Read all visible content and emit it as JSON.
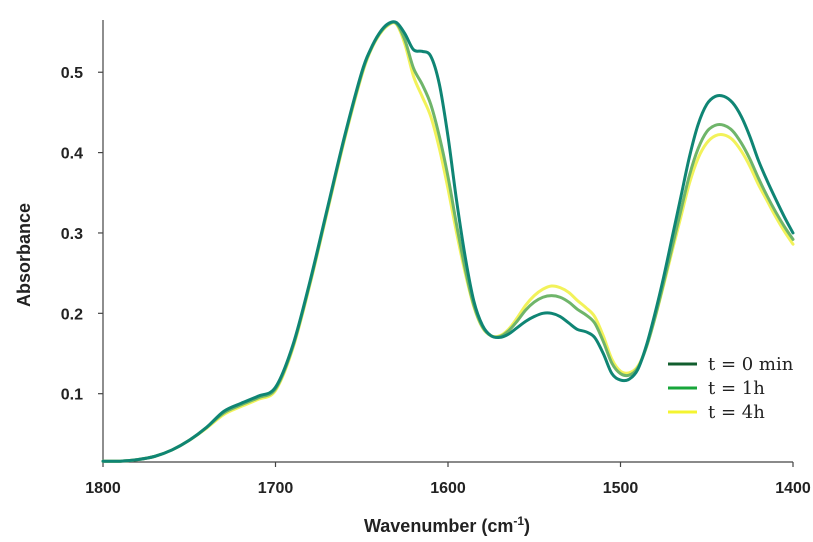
{
  "chart_data": {
    "type": "line",
    "xlabel_main": "Wavenumber (cm",
    "xlabel_sup": "-1",
    "xlabel_end": ")",
    "ylabel": "Absorbance",
    "xlim": [
      1800,
      1400
    ],
    "ylim": [
      0.015,
      0.565
    ],
    "x_ticks": [
      1800,
      1700,
      1600,
      1500,
      1400
    ],
    "y_ticks": [
      0.1,
      0.2,
      0.3,
      0.4,
      0.5
    ],
    "x_tick_labels": [
      "1800",
      "1700",
      "1600",
      "1500",
      "1400"
    ],
    "y_tick_labels": [
      "0.1",
      "0.2",
      "0.3",
      "0.4",
      "0.5"
    ],
    "legend_position": "right",
    "series": [
      {
        "name": "t = 0 min",
        "color": "#0f8574",
        "legend_color": "#115e2e",
        "x": [
          1800,
          1790,
          1780,
          1770,
          1760,
          1750,
          1740,
          1730,
          1720,
          1710,
          1700,
          1690,
          1680,
          1670,
          1660,
          1650,
          1645,
          1640,
          1635,
          1630,
          1625,
          1620,
          1615,
          1610,
          1605,
          1600,
          1595,
          1590,
          1585,
          1580,
          1575,
          1570,
          1565,
          1560,
          1555,
          1550,
          1545,
          1540,
          1535,
          1530,
          1525,
          1520,
          1515,
          1510,
          1505,
          1500,
          1495,
          1490,
          1485,
          1480,
          1475,
          1470,
          1465,
          1460,
          1455,
          1450,
          1445,
          1440,
          1435,
          1430,
          1425,
          1420,
          1415,
          1410,
          1405,
          1400
        ],
        "values": [
          0.016,
          0.016,
          0.018,
          0.022,
          0.03,
          0.042,
          0.058,
          0.078,
          0.088,
          0.097,
          0.108,
          0.16,
          0.24,
          0.33,
          0.42,
          0.5,
          0.528,
          0.548,
          0.56,
          0.562,
          0.548,
          0.528,
          0.526,
          0.52,
          0.485,
          0.42,
          0.34,
          0.27,
          0.215,
          0.185,
          0.172,
          0.17,
          0.174,
          0.182,
          0.19,
          0.196,
          0.2,
          0.2,
          0.196,
          0.188,
          0.18,
          0.177,
          0.17,
          0.15,
          0.125,
          0.117,
          0.118,
          0.13,
          0.16,
          0.2,
          0.245,
          0.295,
          0.345,
          0.395,
          0.435,
          0.46,
          0.47,
          0.47,
          0.462,
          0.445,
          0.42,
          0.39,
          0.365,
          0.342,
          0.32,
          0.3
        ]
      },
      {
        "name": "t = 1h",
        "color": "#6fb56a",
        "legend_color": "#17a63a",
        "x": [
          1800,
          1790,
          1780,
          1770,
          1760,
          1750,
          1740,
          1730,
          1720,
          1710,
          1700,
          1690,
          1680,
          1670,
          1660,
          1650,
          1645,
          1640,
          1635,
          1630,
          1625,
          1620,
          1615,
          1610,
          1605,
          1600,
          1595,
          1590,
          1585,
          1580,
          1575,
          1570,
          1565,
          1560,
          1555,
          1550,
          1545,
          1540,
          1535,
          1530,
          1525,
          1520,
          1515,
          1510,
          1505,
          1500,
          1495,
          1490,
          1485,
          1480,
          1475,
          1470,
          1465,
          1460,
          1455,
          1450,
          1445,
          1440,
          1435,
          1430,
          1425,
          1420,
          1415,
          1410,
          1405,
          1400
        ],
        "values": [
          0.016,
          0.016,
          0.018,
          0.022,
          0.03,
          0.042,
          0.058,
          0.076,
          0.086,
          0.095,
          0.106,
          0.158,
          0.238,
          0.328,
          0.418,
          0.498,
          0.527,
          0.547,
          0.559,
          0.561,
          0.54,
          0.505,
          0.485,
          0.46,
          0.42,
          0.37,
          0.31,
          0.255,
          0.21,
          0.183,
          0.172,
          0.171,
          0.178,
          0.19,
          0.204,
          0.214,
          0.22,
          0.222,
          0.22,
          0.214,
          0.205,
          0.198,
          0.188,
          0.165,
          0.138,
          0.125,
          0.123,
          0.132,
          0.158,
          0.195,
          0.238,
          0.283,
          0.328,
          0.372,
          0.405,
          0.426,
          0.434,
          0.434,
          0.427,
          0.412,
          0.392,
          0.368,
          0.346,
          0.326,
          0.308,
          0.292
        ]
      },
      {
        "name": "t = 4h",
        "color": "#f2f25a",
        "legend_color": "#f4f430",
        "x": [
          1800,
          1790,
          1780,
          1770,
          1760,
          1750,
          1740,
          1730,
          1720,
          1710,
          1700,
          1690,
          1680,
          1670,
          1660,
          1650,
          1645,
          1640,
          1635,
          1630,
          1625,
          1620,
          1615,
          1610,
          1605,
          1600,
          1595,
          1590,
          1585,
          1580,
          1575,
          1570,
          1565,
          1560,
          1555,
          1550,
          1545,
          1540,
          1535,
          1530,
          1525,
          1520,
          1515,
          1510,
          1505,
          1500,
          1495,
          1490,
          1485,
          1480,
          1475,
          1470,
          1465,
          1460,
          1455,
          1450,
          1445,
          1440,
          1435,
          1430,
          1425,
          1420,
          1415,
          1410,
          1405,
          1400
        ],
        "values": [
          0.016,
          0.016,
          0.018,
          0.022,
          0.03,
          0.042,
          0.057,
          0.074,
          0.084,
          0.093,
          0.104,
          0.156,
          0.236,
          0.326,
          0.416,
          0.496,
          0.526,
          0.546,
          0.558,
          0.56,
          0.535,
          0.495,
          0.47,
          0.445,
          0.405,
          0.355,
          0.3,
          0.25,
          0.208,
          0.182,
          0.172,
          0.172,
          0.18,
          0.194,
          0.21,
          0.222,
          0.23,
          0.234,
          0.232,
          0.226,
          0.216,
          0.207,
          0.196,
          0.172,
          0.143,
          0.128,
          0.126,
          0.134,
          0.158,
          0.194,
          0.235,
          0.278,
          0.32,
          0.362,
          0.393,
          0.412,
          0.421,
          0.422,
          0.416,
          0.402,
          0.383,
          0.36,
          0.34,
          0.32,
          0.302,
          0.286
        ]
      }
    ]
  }
}
